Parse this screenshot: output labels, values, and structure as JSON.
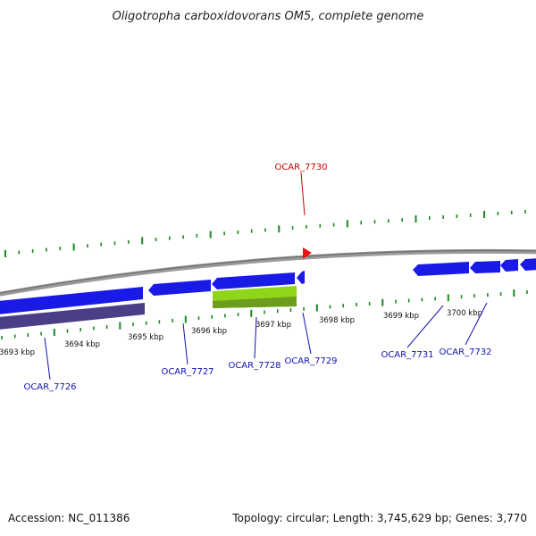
{
  "title": "Oligotropha carboxidovorans OM5, complete genome",
  "footer": {
    "accession": "Accession: NC_011386",
    "topology": "Topology: circular; Length: 3,745,629 bp; Genes: 3,770"
  },
  "colors": {
    "gene_forward": "#1a1ae6",
    "gene_highlight": "#ee1111",
    "rna_green": "#8fd61a",
    "overlay_purple": "#4a3f87",
    "tick_green": "#1a8a1a",
    "backbone": "#8a8a8a",
    "label_blue": "#1010b0",
    "label_red": "#cc0000"
  },
  "scale": {
    "unit": "kbp",
    "labels": [
      "3693 kbp",
      "3694 kbp",
      "3695 kbp",
      "3696 kbp",
      "3697 kbp",
      "3698 kbp",
      "3699 kbp",
      "3700 kbp"
    ]
  },
  "genes": [
    {
      "id": "OCAR_7726",
      "label": "OCAR_7726",
      "color": "label_blue"
    },
    {
      "id": "OCAR_7727",
      "label": "OCAR_7727",
      "color": "label_blue"
    },
    {
      "id": "OCAR_7728",
      "label": "OCAR_7728",
      "color": "label_blue"
    },
    {
      "id": "OCAR_7729",
      "label": "OCAR_7729",
      "color": "label_blue"
    },
    {
      "id": "OCAR_7730",
      "label": "OCAR_7730",
      "color": "label_red"
    },
    {
      "id": "OCAR_7731",
      "label": "OCAR_7731",
      "color": "label_blue"
    },
    {
      "id": "OCAR_7732",
      "label": "OCAR_7732",
      "color": "label_blue"
    }
  ]
}
